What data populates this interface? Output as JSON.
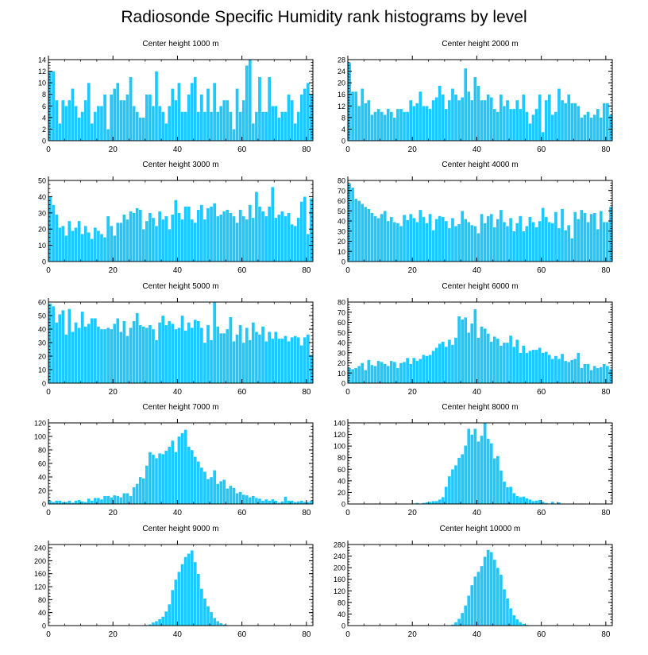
{
  "title": "Radiosonde Specific Humidity rank histograms by level",
  "colors": {
    "bar": "#1ec8ff",
    "bar_edge": "#ffffff",
    "axis": "#000000",
    "background": "#ffffff"
  },
  "chart_data": [
    {
      "type": "bar",
      "title": "Center height 1000 m",
      "xlabel": "",
      "ylabel": "",
      "xlim": [
        0,
        82
      ],
      "ylim": [
        0,
        14
      ],
      "xticks": [
        0,
        20,
        40,
        60,
        80
      ],
      "yticks": [
        0,
        2,
        4,
        6,
        8,
        10,
        12,
        14
      ],
      "values": [
        12,
        12,
        7,
        3,
        7,
        6,
        7,
        9,
        6,
        4,
        5,
        7,
        10,
        3,
        5,
        6,
        6,
        8,
        2,
        8,
        9,
        10,
        7,
        7,
        8,
        11,
        6,
        5,
        4,
        4,
        8,
        8,
        6,
        12,
        6,
        5,
        3,
        6,
        9,
        7,
        10,
        5,
        5,
        8,
        10,
        11,
        5,
        8,
        5,
        9,
        5,
        10,
        5,
        6,
        7,
        7,
        5,
        2,
        9,
        5,
        7,
        13,
        14,
        3,
        5,
        11,
        5,
        5,
        11,
        6,
        6,
        4,
        5,
        5,
        8,
        7,
        3,
        5,
        8,
        9,
        10,
        8
      ]
    },
    {
      "type": "bar",
      "title": "Center height 2000 m",
      "xlabel": "",
      "ylabel": "",
      "xlim": [
        0,
        82
      ],
      "ylim": [
        0,
        28
      ],
      "xticks": [
        0,
        20,
        40,
        60,
        80
      ],
      "yticks": [
        0,
        4,
        8,
        12,
        16,
        20,
        24,
        28
      ],
      "values": [
        27,
        17,
        17,
        12,
        18,
        13,
        14,
        9,
        10,
        11,
        10,
        9,
        11,
        10,
        8,
        11,
        11,
        10,
        10,
        14,
        12,
        13,
        17,
        12,
        12,
        11,
        14,
        15,
        19,
        16,
        11,
        14,
        18,
        16,
        14,
        15,
        25,
        17,
        14,
        22,
        19,
        14,
        14,
        16,
        15,
        11,
        10,
        16,
        12,
        14,
        11,
        11,
        14,
        11,
        16,
        10,
        6,
        9,
        11,
        16,
        3,
        14,
        16,
        9,
        10,
        18,
        14,
        13,
        16,
        13,
        13,
        12,
        8,
        9,
        10,
        8,
        9,
        11,
        8,
        13,
        13,
        9
      ]
    },
    {
      "type": "bar",
      "title": "Center height 3000 m",
      "xlabel": "",
      "ylabel": "",
      "xlim": [
        0,
        82
      ],
      "ylim": [
        0,
        50
      ],
      "xticks": [
        0,
        20,
        40,
        60,
        80
      ],
      "yticks": [
        0,
        10,
        20,
        30,
        40,
        50
      ],
      "values": [
        40,
        35,
        29,
        21,
        22,
        16,
        25,
        19,
        21,
        25,
        17,
        22,
        18,
        14,
        21,
        19,
        17,
        15,
        28,
        22,
        16,
        24,
        24,
        29,
        26,
        31,
        30,
        33,
        32,
        20,
        25,
        30,
        27,
        22,
        31,
        26,
        28,
        20,
        29,
        38,
        30,
        26,
        34,
        34,
        26,
        24,
        32,
        35,
        26,
        33,
        34,
        36,
        28,
        29,
        31,
        32,
        30,
        28,
        24,
        32,
        28,
        26,
        35,
        27,
        43,
        34,
        31,
        28,
        34,
        46,
        27,
        29,
        31,
        28,
        30,
        23,
        22,
        27,
        37,
        40,
        17,
        39
      ]
    },
    {
      "type": "bar",
      "title": "Center height 4000 m",
      "xlabel": "",
      "ylabel": "",
      "xlim": [
        0,
        82
      ],
      "ylim": [
        0,
        80
      ],
      "xticks": [
        0,
        20,
        40,
        60,
        80
      ],
      "yticks": [
        0,
        10,
        20,
        30,
        40,
        50,
        60,
        70,
        80
      ],
      "values": [
        77,
        73,
        62,
        60,
        57,
        54,
        52,
        48,
        45,
        43,
        47,
        50,
        40,
        44,
        39,
        38,
        35,
        46,
        41,
        47,
        43,
        39,
        51,
        44,
        38,
        47,
        31,
        42,
        45,
        44,
        40,
        33,
        43,
        35,
        37,
        50,
        42,
        39,
        36,
        35,
        28,
        47,
        38,
        45,
        47,
        34,
        42,
        51,
        39,
        35,
        43,
        30,
        38,
        45,
        30,
        35,
        44,
        39,
        34,
        40,
        53,
        44,
        39,
        38,
        49,
        33,
        52,
        31,
        36,
        23,
        49,
        42,
        51,
        48,
        39,
        47,
        48,
        32,
        50,
        39,
        39,
        54
      ]
    },
    {
      "type": "bar",
      "title": "Center height 5000 m",
      "xlabel": "",
      "ylabel": "",
      "xlim": [
        0,
        82
      ],
      "ylim": [
        0,
        60
      ],
      "xticks": [
        0,
        20,
        40,
        60,
        80
      ],
      "yticks": [
        0,
        10,
        20,
        30,
        40,
        50,
        60
      ],
      "values": [
        59,
        57,
        45,
        51,
        54,
        36,
        55,
        38,
        45,
        41,
        53,
        42,
        44,
        48,
        48,
        42,
        40,
        40,
        41,
        40,
        44,
        48,
        38,
        46,
        35,
        41,
        46,
        52,
        43,
        42,
        41,
        43,
        40,
        32,
        45,
        50,
        43,
        46,
        44,
        40,
        41,
        50,
        39,
        45,
        41,
        47,
        46,
        41,
        30,
        43,
        32,
        60,
        42,
        37,
        37,
        40,
        49,
        31,
        36,
        43,
        30,
        41,
        32,
        45,
        38,
        36,
        42,
        31,
        38,
        33,
        38,
        33,
        33,
        35,
        31,
        34,
        35,
        34,
        28,
        34,
        36,
        21
      ]
    },
    {
      "type": "bar",
      "title": "Center height 6000 m",
      "xlabel": "",
      "ylabel": "",
      "xlim": [
        0,
        82
      ],
      "ylim": [
        0,
        80
      ],
      "xticks": [
        0,
        20,
        40,
        60,
        80
      ],
      "yticks": [
        0,
        10,
        20,
        30,
        40,
        50,
        60,
        70,
        80
      ],
      "values": [
        15,
        14,
        15,
        17,
        20,
        13,
        23,
        18,
        17,
        22,
        21,
        19,
        17,
        22,
        21,
        15,
        20,
        21,
        25,
        19,
        25,
        22,
        24,
        28,
        27,
        28,
        32,
        35,
        39,
        41,
        36,
        43,
        38,
        45,
        66,
        63,
        65,
        50,
        59,
        73,
        45,
        56,
        54,
        49,
        41,
        46,
        44,
        37,
        40,
        40,
        47,
        36,
        43,
        30,
        37,
        30,
        32,
        33,
        33,
        35,
        30,
        31,
        28,
        24,
        27,
        24,
        29,
        22,
        21,
        23,
        24,
        30,
        15,
        19,
        19,
        13,
        17,
        15,
        16,
        19,
        17,
        14
      ]
    },
    {
      "type": "bar",
      "title": "Center height 7000 m",
      "xlabel": "",
      "ylabel": "",
      "xlim": [
        0,
        82
      ],
      "ylim": [
        0,
        120
      ],
      "xticks": [
        0,
        20,
        40,
        60,
        80
      ],
      "yticks": [
        0,
        20,
        40,
        60,
        80,
        100,
        120
      ],
      "values": [
        5,
        3,
        5,
        5,
        3,
        3,
        5,
        2,
        5,
        6,
        4,
        3,
        8,
        5,
        9,
        9,
        7,
        12,
        12,
        10,
        13,
        12,
        10,
        16,
        16,
        12,
        25,
        30,
        40,
        38,
        57,
        77,
        73,
        68,
        75,
        74,
        79,
        85,
        94,
        77,
        100,
        105,
        110,
        85,
        80,
        70,
        63,
        54,
        48,
        37,
        40,
        50,
        30,
        34,
        36,
        23,
        27,
        24,
        16,
        18,
        14,
        13,
        10,
        12,
        9,
        8,
        5,
        7,
        5,
        7,
        5,
        2,
        4,
        11,
        5,
        5,
        3,
        4,
        5,
        3,
        3,
        5
      ]
    },
    {
      "type": "bar",
      "title": "Center height 8000 m",
      "xlabel": "",
      "ylabel": "",
      "xlim": [
        0,
        82
      ],
      "ylim": [
        0,
        140
      ],
      "xticks": [
        0,
        20,
        40,
        60,
        80
      ],
      "yticks": [
        0,
        20,
        40,
        60,
        80,
        100,
        120,
        140
      ],
      "values": [
        0,
        0,
        0,
        0,
        0,
        0,
        0,
        0,
        1,
        0,
        0,
        0,
        0,
        0,
        1,
        0,
        0,
        0,
        0,
        0,
        1,
        2,
        0,
        2,
        3,
        4,
        5,
        5,
        8,
        12,
        30,
        48,
        60,
        67,
        80,
        86,
        101,
        130,
        120,
        130,
        108,
        118,
        140,
        113,
        105,
        79,
        83,
        58,
        39,
        29,
        30,
        19,
        14,
        12,
        13,
        10,
        8,
        5,
        6,
        7,
        4,
        2,
        0,
        4,
        0,
        3,
        0,
        0,
        0,
        0,
        1,
        0,
        1,
        0,
        0,
        0,
        1,
        0,
        0,
        0,
        0,
        0
      ]
    },
    {
      "type": "bar",
      "title": "Center height 9000 m",
      "xlabel": "",
      "ylabel": "",
      "xlim": [
        0,
        82
      ],
      "ylim": [
        0,
        250
      ],
      "xticks": [
        0,
        20,
        40,
        60,
        80
      ],
      "yticks": [
        0,
        40,
        80,
        120,
        160,
        200,
        240
      ],
      "values": [
        0,
        0,
        0,
        0,
        0,
        0,
        0,
        0,
        0,
        0,
        0,
        0,
        0,
        0,
        0,
        0,
        0,
        0,
        0,
        0,
        0,
        0,
        0,
        0,
        0,
        0,
        0,
        0,
        0,
        1,
        2,
        4,
        10,
        14,
        20,
        28,
        44,
        66,
        110,
        142,
        166,
        190,
        212,
        222,
        232,
        196,
        160,
        114,
        84,
        60,
        42,
        24,
        14,
        8,
        4,
        2,
        1,
        1,
        0,
        0,
        0,
        0,
        0,
        0,
        0,
        0,
        0,
        0,
        0,
        0,
        0,
        0,
        0,
        0,
        0,
        0,
        0,
        0,
        0,
        0,
        0,
        0
      ]
    },
    {
      "type": "bar",
      "title": "Center height 10000 m",
      "xlabel": "",
      "ylabel": "",
      "xlim": [
        0,
        82
      ],
      "ylim": [
        0,
        280
      ],
      "xticks": [
        0,
        20,
        40,
        60,
        80
      ],
      "yticks": [
        0,
        40,
        80,
        120,
        160,
        200,
        240,
        280
      ],
      "values": [
        0,
        0,
        0,
        0,
        0,
        0,
        0,
        0,
        0,
        0,
        0,
        0,
        0,
        0,
        0,
        0,
        0,
        0,
        0,
        0,
        0,
        0,
        0,
        0,
        0,
        0,
        0,
        0,
        0,
        0,
        0,
        1,
        4,
        12,
        24,
        44,
        70,
        104,
        140,
        170,
        186,
        206,
        238,
        262,
        254,
        228,
        200,
        176,
        126,
        94,
        60,
        36,
        22,
        12,
        6,
        3,
        1,
        1,
        0,
        0,
        0,
        0,
        0,
        0,
        0,
        0,
        0,
        0,
        0,
        0,
        0,
        0,
        0,
        0,
        0,
        0,
        0,
        0,
        0,
        0,
        0,
        0
      ]
    }
  ]
}
